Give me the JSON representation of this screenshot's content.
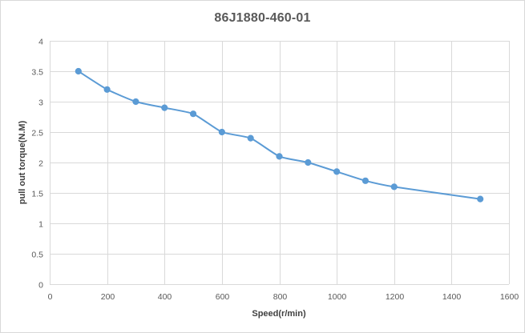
{
  "chart_data": {
    "type": "line",
    "title": "86J1880-460-01",
    "xlabel": "Speed(r/min)",
    "ylabel": "pull out torque(N.M)",
    "xlim": [
      0,
      1600
    ],
    "ylim": [
      0,
      4
    ],
    "x_ticks": [
      0,
      200,
      400,
      600,
      800,
      1000,
      1200,
      1400,
      1600
    ],
    "y_ticks": [
      0,
      0.5,
      1,
      1.5,
      2,
      2.5,
      3,
      3.5,
      4
    ],
    "grid": true,
    "smooth": true,
    "series": [
      {
        "color": "#5b9bd5",
        "x": [
          100,
          200,
          300,
          400,
          500,
          600,
          700,
          800,
          900,
          1000,
          1100,
          1200,
          1500
        ],
        "y": [
          3.5,
          3.2,
          3.0,
          2.9,
          2.8,
          2.5,
          2.4,
          2.1,
          2.0,
          1.85,
          1.7,
          1.6,
          1.4
        ]
      }
    ]
  }
}
